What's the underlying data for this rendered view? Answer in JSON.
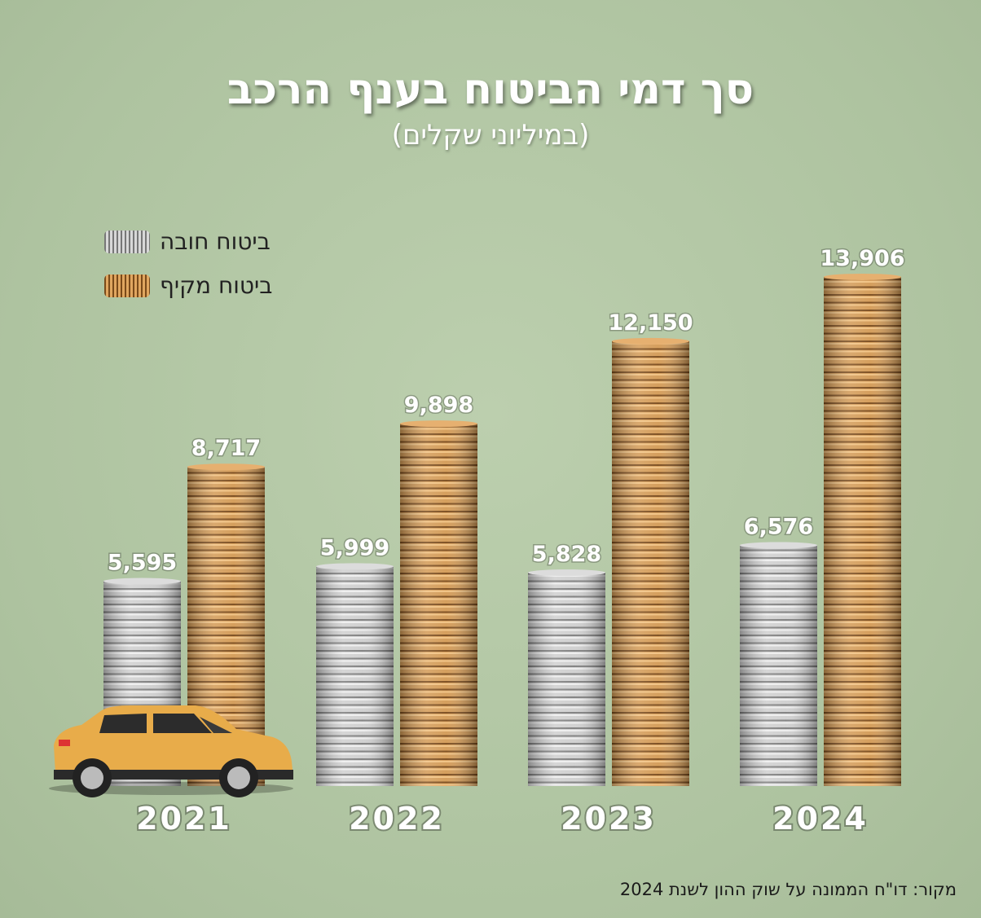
{
  "chart_data": {
    "type": "bar",
    "title": "סך דמי הביטוח בענף הרכב",
    "subtitle": "(במיליוני שקלים)",
    "categories": [
      "2021",
      "2022",
      "2023",
      "2024"
    ],
    "series": [
      {
        "name": "ביטוח חובה",
        "values": [
          5595,
          5999,
          5828,
          6576
        ],
        "color": "#a9a9a9",
        "labels": [
          "5,595",
          "5,999",
          "5,828",
          "6,576"
        ]
      },
      {
        "name": "ביטוח מקיף",
        "values": [
          8717,
          9898,
          12150,
          13906
        ],
        "color": "#c28a45",
        "labels": [
          "8,717",
          "9,898",
          "12,150",
          "13,906"
        ]
      }
    ],
    "legend_placement": "top-left",
    "grid": false,
    "ylim": [
      0,
      13906
    ]
  },
  "source": "מקור: דו\"ח הממונה על שוק ההון לשנת 2024",
  "icons": {
    "decoration": "toy-car-icon"
  }
}
